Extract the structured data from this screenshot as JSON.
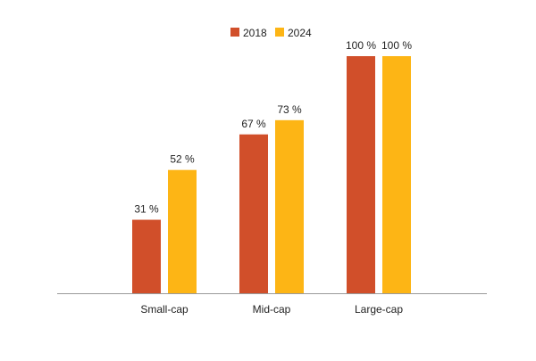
{
  "chart_data": {
    "type": "bar",
    "categories": [
      "Small-cap",
      "Mid-cap",
      "Large-cap"
    ],
    "series": [
      {
        "name": "2018",
        "values": [
          31,
          67,
          100
        ],
        "labels": [
          "31 %",
          "67 %",
          "100 %"
        ],
        "color": "#D14F2A"
      },
      {
        "name": "2024",
        "values": [
          52,
          73,
          100
        ],
        "labels": [
          "52 %",
          "73 %",
          "100 %"
        ],
        "color": "#FDB515"
      }
    ],
    "title": "",
    "xlabel": "",
    "ylabel": "",
    "ylim": [
      0,
      100
    ],
    "grid": false,
    "legend": "top-center",
    "axis_color": "#9a9a9a"
  }
}
